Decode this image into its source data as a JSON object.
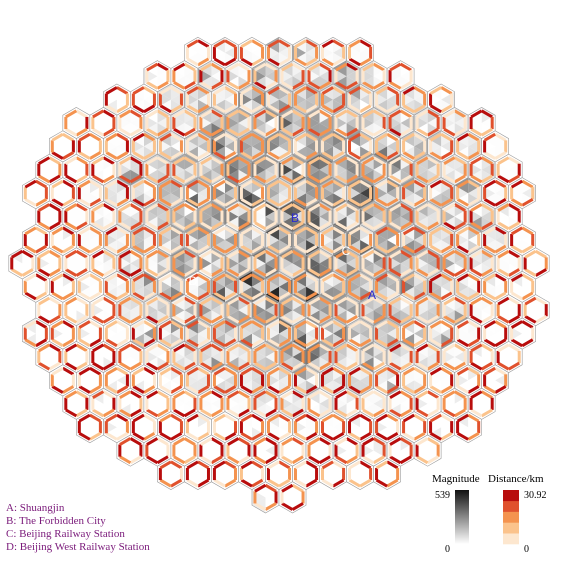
{
  "map": {
    "markers": [
      {
        "letter": "A",
        "color": "#2a2ad0"
      },
      {
        "letter": "B",
        "color": "#2a2ad0"
      },
      {
        "letter": "C",
        "color": "#ffffff"
      },
      {
        "letter": "D",
        "color": "#ffffff"
      }
    ]
  },
  "legend": {
    "magnitude": {
      "title": "Magnitude",
      "max_label": "539",
      "min_label": "0",
      "max": 539,
      "min": 0
    },
    "distance": {
      "title": "Distance/km",
      "max_label": "30.92",
      "min_label": "0",
      "max": 30.92,
      "min": 0,
      "colors": [
        "#fde7cf",
        "#fbc38c",
        "#f4934f",
        "#e0512d",
        "#b80d0d"
      ]
    }
  },
  "key": {
    "items": [
      "A: Shuangjin",
      "B: The Forbidden City",
      "C: Beijing Railway Station",
      "D: Beijing West Railway Station"
    ]
  }
}
